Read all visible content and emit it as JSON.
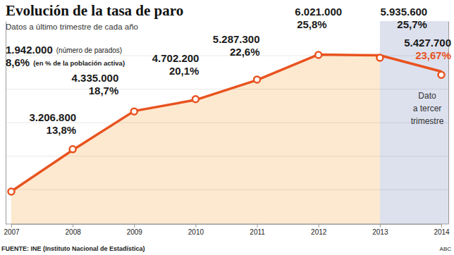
{
  "chart_data": {
    "type": "line",
    "title": "Evolución de la tasa de paro",
    "subtitle": "Datos a último trimestre de cada año",
    "categories": [
      "2007",
      "2008",
      "2009",
      "2010",
      "2011",
      "2012",
      "2013",
      "2014"
    ],
    "series": [
      {
        "name": "(número de parados)",
        "type": "scatter",
        "marker": "circle",
        "axis": "y2",
        "color": "#e8531f",
        "values": [
          1942000,
          3206800,
          4335000,
          4702200,
          5287300,
          6021000,
          5935600,
          5427700
        ],
        "value_labels": [
          "1.942.000",
          "3.206.800",
          "4.335.000",
          "4.702.200",
          "5.287.300",
          "6.021.000",
          "5.935.600",
          "5.427.700"
        ]
      },
      {
        "name": "(en % de la población activa)",
        "type": "area",
        "color": "#e8531f",
        "values": [
          8.6,
          13.8,
          18.7,
          20.1,
          22.6,
          25.8,
          25.7,
          23.67
        ],
        "value_labels": [
          "8,6%",
          "13,8%",
          "18,7%",
          "20,1%",
          "22,6%",
          "25,8%",
          "25,7%",
          "23,67%"
        ]
      }
    ],
    "ylim": [
      4.5,
      30
    ],
    "y2lim": [
      975000,
      7030000
    ],
    "y2ticks": [
      2000000,
      3000000,
      4000000,
      5000000,
      6000000
    ],
    "grid": true,
    "data_labels": true,
    "tick_labels": "x",
    "annotations": [
      {
        "text": "Dato\na tercer\ntrimestre"
      }
    ],
    "source": "FUENTE: INE (Instituto Nacional de Estadística)",
    "credit": "ABC"
  }
}
